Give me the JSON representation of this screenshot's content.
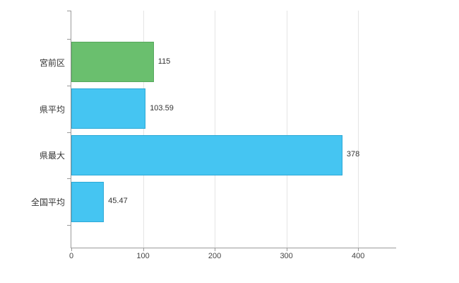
{
  "chart_data": {
    "type": "bar",
    "orientation": "horizontal",
    "title": "",
    "xlabel": "",
    "ylabel": "",
    "categories": [
      "宮前区",
      "県平均",
      "県最大",
      "全国平均"
    ],
    "values": [
      115,
      103.59,
      378,
      45.47
    ],
    "value_labels": [
      "115",
      "103.59",
      "378",
      "45.47"
    ],
    "bar_colors": [
      "#6abf6e",
      "#45c5f2",
      "#45c5f2",
      "#45c5f2"
    ],
    "bar_border_colors": [
      "#55a85c",
      "#2da9d6",
      "#2da9d6",
      "#2da9d6"
    ],
    "x_ticks": [
      0,
      100,
      200,
      300,
      400
    ],
    "xlim": [
      0,
      453
    ],
    "grid": "vertical",
    "legend": "none",
    "background": "#ffffff",
    "axis_color": "#9a9a9a"
  }
}
